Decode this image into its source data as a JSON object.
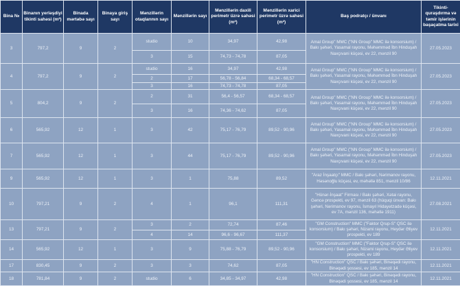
{
  "table": {
    "headers": [
      "Bina №",
      "Binanın yerləşdiyi tikinti sahəsi (m²)",
      "Binada mərtəbə sayı",
      "Binaya giriş sayı",
      "Mənzillərin otaqlarının sayı",
      "Mənzillərin sayı",
      "Mənzillərin daxili perimetr üzrə sahəsi (m²)",
      "Mənzillərin xarici perimetr üzrə sahəsi (m²)",
      "Baş podratçı / ünvanı",
      "Tikinti-quraşdırma və təmir işlərinin başaçatma tarixi"
    ],
    "rows": [
      {
        "bina": "3",
        "area": "797,2",
        "floors": "9",
        "entrances": "2",
        "contractor": "Amal Group\" MMC (\"NN Group\" MMC ilə konsorsium) / Bakı şəhəri, Yasamal rayonu, Məhəmməd İbn Hinduşah Naxçıvani küçəsi, ev 22, mənzil 90",
        "date": "27.05.2023",
        "units": [
          {
            "rooms": "studio",
            "count": "10",
            "inner": "34,97",
            "outer": "42,98"
          },
          {
            "rooms": "3",
            "count": "15",
            "inner": "74,73 - 74,78",
            "outer": "87,05"
          }
        ]
      },
      {
        "bina": "4",
        "area": "797,2",
        "floors": "9",
        "entrances": "2",
        "contractor": "Amal Group\" MMC (\"NN Group\" MMC ilə konsorsium) / Bakı şəhəri, Yasamal rayonu, Məhəmməd İbn Hinduşah Naxçıvani küçəsi, ev 22, mənzil 90",
        "date": "27.05.2023",
        "units": [
          {
            "rooms": "studio",
            "count": "16",
            "inner": "34,97",
            "outer": "42,98"
          },
          {
            "rooms": "2",
            "count": "17",
            "inner": "56,78 - 56,84",
            "outer": "68,34 - 68,57"
          },
          {
            "rooms": "3",
            "count": "16",
            "inner": "74,73 - 74,78",
            "outer": "87,05"
          }
        ]
      },
      {
        "bina": "5",
        "area": "804,2",
        "floors": "9",
        "entrances": "2",
        "contractor": "Amal Group\" MMC (\"NN Group\" MMC ilə konsorsium) / Bakı şəhəri, Yasamal rayonu, Məhəmməd İbn Hinduşah Naxçıvani küçəsi, ev 22, mənzil 90",
        "date": "27.05.2023",
        "units": [
          {
            "rooms": "2",
            "count": "31",
            "inner": "56,4 - 56,57",
            "outer": "68,34 - 68,57"
          },
          {
            "rooms": "3",
            "count": "16",
            "inner": "74,36 - 74,62",
            "outer": "87,05"
          }
        ]
      },
      {
        "bina": "6",
        "area": "565,92",
        "floors": "12",
        "entrances": "1",
        "contractor": "Amal Group\" MMC (\"NN Group\" MMC ilə konsorsium) / Bakı şəhəri, Yasamal rayonu, Məhəmməd İbn Hinduşah Naxçıvani küçəsi, ev 22, mənzil 90",
        "date": "27.05.2023",
        "units": [
          {
            "rooms": "3",
            "count": "42",
            "inner": "75,17 - 76,79",
            "outer": "89,52 - 90,96"
          }
        ]
      },
      {
        "bina": "7",
        "area": "565,92",
        "floors": "12",
        "entrances": "1",
        "contractor": "Amal Group\" MMC (\"NN Group\" MMC ilə konsorsium) / Bakı şəhəri, Yasamal rayonu, Məhəmməd İbn Hinduşah Naxçıvani küçəsi, ev 22, mənzil 90",
        "date": "27.05.2023",
        "units": [
          {
            "rooms": "3",
            "count": "44",
            "inner": "75,17 - 76,79",
            "outer": "89,52 - 90,96"
          }
        ]
      },
      {
        "bina": "9",
        "area": "565,92",
        "floors": "12",
        "entrances": "1",
        "contractor": "\"Araz İnşaatçı\" MMC / Bakı şəhəri, Nərimanov rayonu, Həsənoğlu küçəsi, ev, məhəllə 851, mənzil 10/86",
        "date": "12.11.2021",
        "units": [
          {
            "rooms": "3",
            "count": "1",
            "inner": "75,88",
            "outer": "89,52"
          }
        ]
      },
      {
        "bina": "10",
        "area": "797,21",
        "floors": "9",
        "entrances": "2",
        "contractor": "\"Hünər-İnşaat\" Firması / Bakı şəhəri, Xətai rayonu, Gəncə prospekti, ev 97, mənzil 63 (hüquqi ünvan: Bakı şəhəri, Nərimanov rayonu, İsmayıl Hidayətzadə küçəsi, ev 7A, mənzil 136, məhəllə 1911)",
        "date": "27.08.2021",
        "units": [
          {
            "rooms": "4",
            "count": "1",
            "inner": "96,1",
            "outer": "111,31"
          }
        ]
      },
      {
        "bina": "13",
        "area": "797,21",
        "floors": "9",
        "entrances": "2",
        "contractor": "\"GM Construction\" MMC (\"Faktor Qrup-S\" QSC ilə konsorsium) / Bakı şəhəri, Nizami rayonu, Heydər Əliyev prospekti, ev 189",
        "date": "12.11.2021",
        "units": [
          {
            "rooms": "3",
            "count": "2",
            "inner": "72,74",
            "outer": "87,46"
          },
          {
            "rooms": "4",
            "count": "14",
            "inner": "96,6 - 96,67",
            "outer": "111,37"
          }
        ]
      },
      {
        "bina": "14",
        "area": "565,92",
        "floors": "12",
        "entrances": "1",
        "contractor": "\"GM Construction\" MMC (\"Faktor Qrup-S\" QSC ilə konsorsium) / Bakı şəhəri, Nizami rayonu, Heydər Əliyev prospekti, ev 189",
        "date": "12.11.2021",
        "units": [
          {
            "rooms": "3",
            "count": "9",
            "inner": "75,88 - 76,79",
            "outer": "89,52 - 90,96"
          }
        ]
      },
      {
        "bina": "17",
        "area": "830,45",
        "floors": "9",
        "entrances": "2",
        "contractor": "\"HN Construction\" QSC / Bakı şəhəri, Binəqədi rayonu, Binəqədi şossesi, ev 185, mənzil 14",
        "date": "12.11.2021",
        "units": [
          {
            "rooms": "3",
            "count": "3",
            "inner": "74,62",
            "outer": "87,05"
          }
        ]
      },
      {
        "bina": "18",
        "area": "781,84",
        "floors": "9",
        "entrances": "2",
        "contractor": "\"HN Construction\" QSC / Bakı şəhəri, Binəqədi rayonu, Binəqədi şossesi, ev 185, mənzil 14",
        "date": "12.11.2021",
        "units": [
          {
            "rooms": "studio",
            "count": "6",
            "inner": "34,85 - 34,97",
            "outer": "42,98"
          }
        ]
      }
    ]
  },
  "colors": {
    "header_bg": "#1f3864",
    "body_bg": "#8ea3c2",
    "border": "#dfe6f0"
  }
}
